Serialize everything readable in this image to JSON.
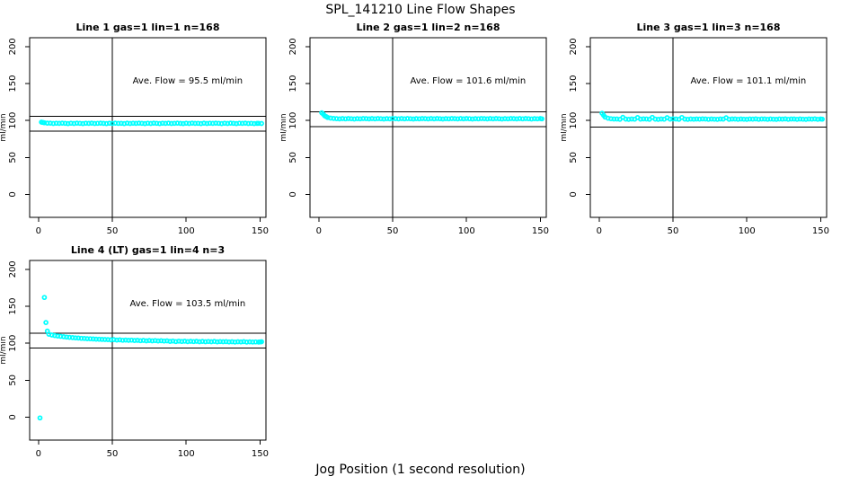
{
  "figure": {
    "title": "SPL_141210  Line Flow Shapes",
    "xlabel": "Jog Position (1 second resolution)",
    "colors": {
      "points": "#00ffff",
      "axis": "#000000",
      "background": "#ffffff"
    }
  },
  "chart_data": [
    {
      "type": "scatter",
      "title": "Line 1 gas=1 lin=1 n=168",
      "gas": 1,
      "lin": 1,
      "n": 168,
      "annotation": "Ave. Flow =  95.5  ml/min",
      "annotation_pos": [
        101,
        150
      ],
      "avg_flow_ml_min": 95.5,
      "ylabel": "ml/min",
      "x_ticks": [
        0,
        50,
        100,
        150
      ],
      "y_ticks": [
        0,
        50,
        100,
        150,
        200
      ],
      "x_range": [
        -6,
        154
      ],
      "y_range": [
        -31,
        212
      ],
      "vline_x": 50,
      "ref_lines": [
        105.5,
        85.5
      ],
      "series": {
        "x_start": 2,
        "x_step": 2,
        "y": [
          97.8,
          96.9,
          96.5,
          96.4,
          96.0,
          96.3,
          96.1,
          96.5,
          96.2,
          95.9,
          96.3,
          96.0,
          96.4,
          96.2,
          95.9,
          96.3,
          96.1,
          96.4,
          96.0,
          96.2,
          96.5,
          96.1,
          95.9,
          96.3,
          96.0,
          96.4,
          96.1,
          96.2,
          95.9,
          96.4,
          96.0,
          96.3,
          96.1,
          96.5,
          96.2,
          95.9,
          96.3,
          96.0,
          96.4,
          96.2,
          95.9,
          96.3,
          96.1,
          96.4,
          96.0,
          96.2,
          96.5,
          96.1,
          95.9,
          96.3,
          96.0,
          96.4,
          96.1,
          96.2,
          95.9,
          96.4,
          96.0,
          96.3,
          96.1,
          96.5,
          96.2,
          95.9,
          96.3,
          96.0,
          96.4,
          96.2,
          95.9,
          96.3,
          96.1,
          96.4,
          96.0,
          96.2,
          95.9,
          96.1
        ]
      },
      "extra_points": [
        [
          3,
          97.4
        ],
        [
          149,
          96.2
        ],
        [
          151,
          96.0
        ]
      ]
    },
    {
      "type": "scatter",
      "title": "Line 2 gas=1 lin=2 n=168",
      "gas": 1,
      "lin": 2,
      "n": 168,
      "annotation": "Ave. Flow =  101.6  ml/min",
      "annotation_pos": [
        101,
        150
      ],
      "avg_flow_ml_min": 101.6,
      "ylabel": "ml/min",
      "x_ticks": [
        0,
        50,
        100,
        150
      ],
      "y_ticks": [
        0,
        50,
        100,
        150,
        200
      ],
      "x_range": [
        -6,
        154
      ],
      "y_range": [
        -31,
        212
      ],
      "vline_x": 50,
      "ref_lines": [
        111.6,
        91.6
      ],
      "series": {
        "x_start": 2,
        "x_step": 2,
        "y": [
          110.4,
          106.3,
          104.1,
          103.2,
          102.8,
          102.5,
          102.2,
          102.6,
          102.3,
          102.7,
          102.4,
          102.1,
          102.5,
          102.3,
          102.6,
          102.5,
          102.2,
          102.6,
          102.3,
          102.7,
          102.4,
          102.1,
          102.5,
          102.3,
          102.6,
          102.5,
          102.2,
          102.6,
          102.3,
          102.7,
          102.4,
          102.1,
          102.5,
          102.3,
          102.6,
          102.5,
          102.2,
          102.6,
          102.3,
          102.7,
          102.4,
          102.1,
          102.5,
          102.3,
          102.6,
          102.5,
          102.2,
          102.6,
          102.3,
          102.7,
          102.4,
          102.1,
          102.5,
          102.3,
          102.6,
          102.5,
          102.2,
          102.6,
          102.3,
          102.7,
          102.4,
          102.1,
          102.5,
          102.3,
          102.6,
          102.5,
          102.2,
          102.6,
          102.3,
          102.7,
          102.4,
          102.1,
          102.5,
          102.3,
          102.6
        ]
      },
      "extra_points": [
        [
          3,
          108.6
        ],
        [
          5,
          105.2
        ],
        [
          151,
          102.3
        ]
      ]
    },
    {
      "type": "scatter",
      "title": "Line 3 gas=1 lin=3 n=168",
      "gas": 1,
      "lin": 3,
      "n": 168,
      "annotation": "Ave. Flow =  101.1  ml/min",
      "annotation_pos": [
        101,
        150
      ],
      "avg_flow_ml_min": 101.1,
      "ylabel": "ml/min",
      "x_ticks": [
        0,
        50,
        100,
        150
      ],
      "y_ticks": [
        0,
        50,
        100,
        150,
        200
      ],
      "x_range": [
        -6,
        154
      ],
      "y_range": [
        -31,
        212
      ],
      "vline_x": 50,
      "ref_lines": [
        111.1,
        91.1
      ],
      "series": {
        "x_start": 2,
        "x_step": 2,
        "y": [
          109.8,
          104.7,
          103.1,
          102.4,
          102.1,
          102.0,
          101.7,
          104.3,
          101.9,
          101.6,
          102.1,
          101.8,
          104.0,
          101.9,
          102.2,
          102.0,
          101.7,
          104.2,
          101.9,
          101.6,
          102.1,
          101.8,
          103.9,
          101.9,
          102.2,
          102.0,
          101.7,
          104.1,
          101.9,
          101.6,
          102.1,
          101.8,
          102.0,
          101.9,
          102.2,
          102.0,
          101.7,
          102.1,
          101.8,
          101.6,
          102.0,
          101.9,
          103.8,
          101.7,
          102.1,
          102.0,
          101.7,
          102.1,
          101.8,
          101.6,
          102.0,
          101.9,
          102.2,
          101.7,
          102.1,
          102.0,
          101.7,
          102.1,
          101.8,
          101.6,
          102.0,
          101.9,
          102.2,
          101.7,
          102.1,
          102.0,
          101.7,
          102.1,
          101.8,
          101.6,
          102.0,
          101.9,
          102.2,
          101.7,
          102.1
        ]
      },
      "extra_points": [
        [
          3,
          107.0
        ],
        [
          151,
          101.8
        ]
      ]
    },
    {
      "type": "scatter",
      "title": "Line 4 (LT) gas=1 lin=4 n=3",
      "gas": 1,
      "lin": 4,
      "n": 3,
      "annotation": "Ave. Flow =  103.5  ml/min",
      "annotation_pos": [
        101,
        150
      ],
      "avg_flow_ml_min": 103.5,
      "ylabel": "ml/min",
      "x_ticks": [
        0,
        50,
        100,
        150
      ],
      "y_ticks": [
        0,
        50,
        100,
        150,
        200
      ],
      "x_range": [
        -6,
        154
      ],
      "y_range": [
        -31,
        212
      ],
      "vline_x": 50,
      "ref_lines": [
        113.5,
        93.5
      ],
      "series": {
        "x_start": 7,
        "x_step": 2,
        "y": [
          112.2,
          111.2,
          110.4,
          109.8,
          109.3,
          108.8,
          108.4,
          108.0,
          107.6,
          107.3,
          107.0,
          106.7,
          106.5,
          106.2,
          106.0,
          105.8,
          105.6,
          105.4,
          105.2,
          105.1,
          105.0,
          104.6,
          104.9,
          104.3,
          104.6,
          104.1,
          104.4,
          104.0,
          104.2,
          103.8,
          104.0,
          103.5,
          103.9,
          103.3,
          103.7,
          103.2,
          103.6,
          103.1,
          103.4,
          103.0,
          103.2,
          102.5,
          103.0,
          102.3,
          102.9,
          102.4,
          102.8,
          102.2,
          102.7,
          102.3,
          102.6,
          102.1,
          102.5,
          102.0,
          102.4,
          102.1,
          102.5,
          101.9,
          102.3,
          102.0,
          102.2,
          101.8,
          102.1,
          101.7,
          102.0,
          101.8,
          102.2,
          101.6,
          101.9,
          101.7,
          101.8,
          101.5
        ]
      },
      "extra_points": [
        [
          1,
          -1
        ],
        [
          4,
          162
        ],
        [
          5,
          128
        ],
        [
          6,
          116.5
        ],
        [
          150,
          101.8
        ],
        [
          151,
          102.1
        ]
      ]
    }
  ]
}
